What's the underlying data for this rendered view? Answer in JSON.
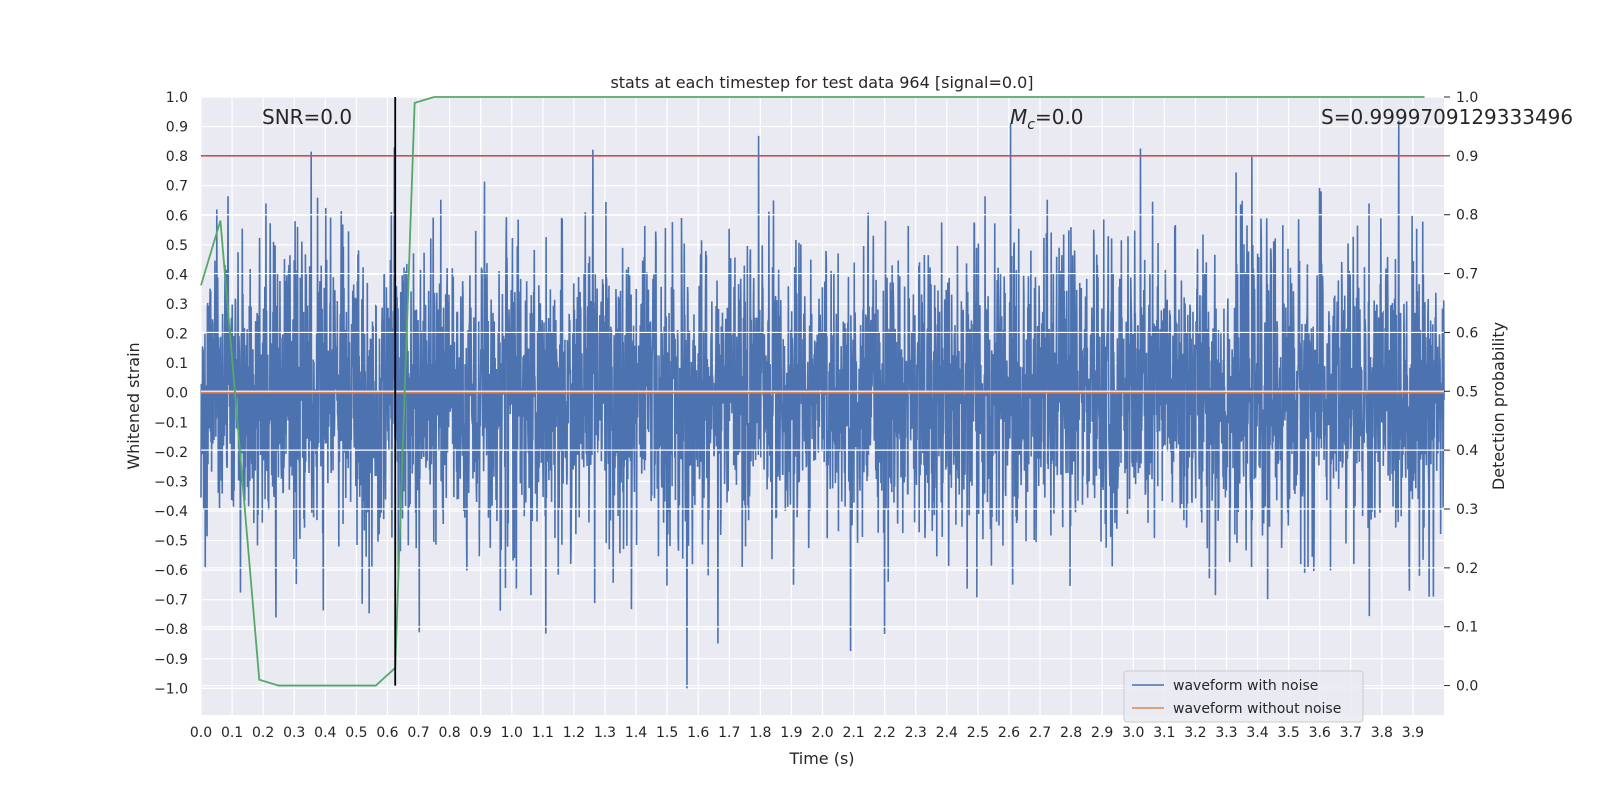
{
  "chart_data": {
    "type": "line",
    "title": "stats at each timestep for test data 964 [signal=0.0]",
    "xlabel": "Time (s)",
    "ylabel": "Whitened strain",
    "y2label": "Detection probability",
    "xlim": [
      0.0,
      4.0
    ],
    "ylim": [
      -1.09,
      1.0
    ],
    "y2lim": [
      -0.05,
      1.0
    ],
    "x_ticks": [
      "0.0",
      "0.1",
      "0.2",
      "0.3",
      "0.4",
      "0.5",
      "0.6",
      "0.7",
      "0.8",
      "0.9",
      "1.0",
      "1.1",
      "1.2",
      "1.3",
      "1.4",
      "1.5",
      "1.6",
      "1.7",
      "1.8",
      "1.9",
      "2.0",
      "2.1",
      "2.2",
      "2.3",
      "2.4",
      "2.5",
      "2.6",
      "2.7",
      "2.8",
      "2.9",
      "3.0",
      "3.1",
      "3.2",
      "3.3",
      "3.4",
      "3.5",
      "3.6",
      "3.7",
      "3.8",
      "3.9"
    ],
    "y_ticks": [
      "1.0",
      "0.9",
      "0.8",
      "0.7",
      "0.6",
      "0.5",
      "0.4",
      "0.3",
      "0.2",
      "0.1",
      "0.0",
      "−0.1",
      "−0.2",
      "−0.3",
      "−0.4",
      "−0.5",
      "−0.6",
      "−0.7",
      "−0.8",
      "−0.9",
      "−1.0"
    ],
    "y2_ticks": [
      "1.0",
      "0.9",
      "0.8",
      "0.7",
      "0.6",
      "0.5",
      "0.4",
      "0.3",
      "0.2",
      "0.1",
      "0.0"
    ],
    "grid": true,
    "legend_position": "bottom-right",
    "annotations": {
      "snr": "SNR=0.0",
      "mc_symbol": "M",
      "mc_sub": "c",
      "mc_value": "=0.0",
      "s": "S=0.9999709129333496"
    },
    "series": [
      {
        "name": "waveform with noise",
        "axis": "left",
        "color": "#4c72b0",
        "noise_std": 0.25,
        "envelope": [
          -1.0,
          0.92
        ],
        "samples": 4096
      },
      {
        "name": "waveform without noise",
        "axis": "left",
        "color": "#dd8452",
        "x": [
          0.0,
          4.0
        ],
        "y": [
          0.0,
          0.0
        ]
      },
      {
        "name": "",
        "axis": "right",
        "color": "#55a868",
        "x": [
          0.0,
          0.0625,
          0.1875,
          0.25,
          0.3125,
          0.375,
          0.4375,
          0.5,
          0.5625,
          0.625,
          0.6875,
          0.75,
          0.8125,
          1.0,
          2.0,
          3.0,
          3.9375
        ],
        "y": [
          0.68,
          0.79,
          0.01,
          0.0,
          0.0,
          0.0,
          0.0,
          0.0,
          0.0,
          0.03,
          0.99,
          1.0,
          1.0,
          1.0,
          1.0,
          1.0,
          1.0
        ]
      }
    ],
    "threshold": {
      "axis": "right",
      "value": 0.9,
      "color": "#c44e52"
    },
    "marker_time": {
      "x": 0.625,
      "color": "#000000"
    }
  }
}
